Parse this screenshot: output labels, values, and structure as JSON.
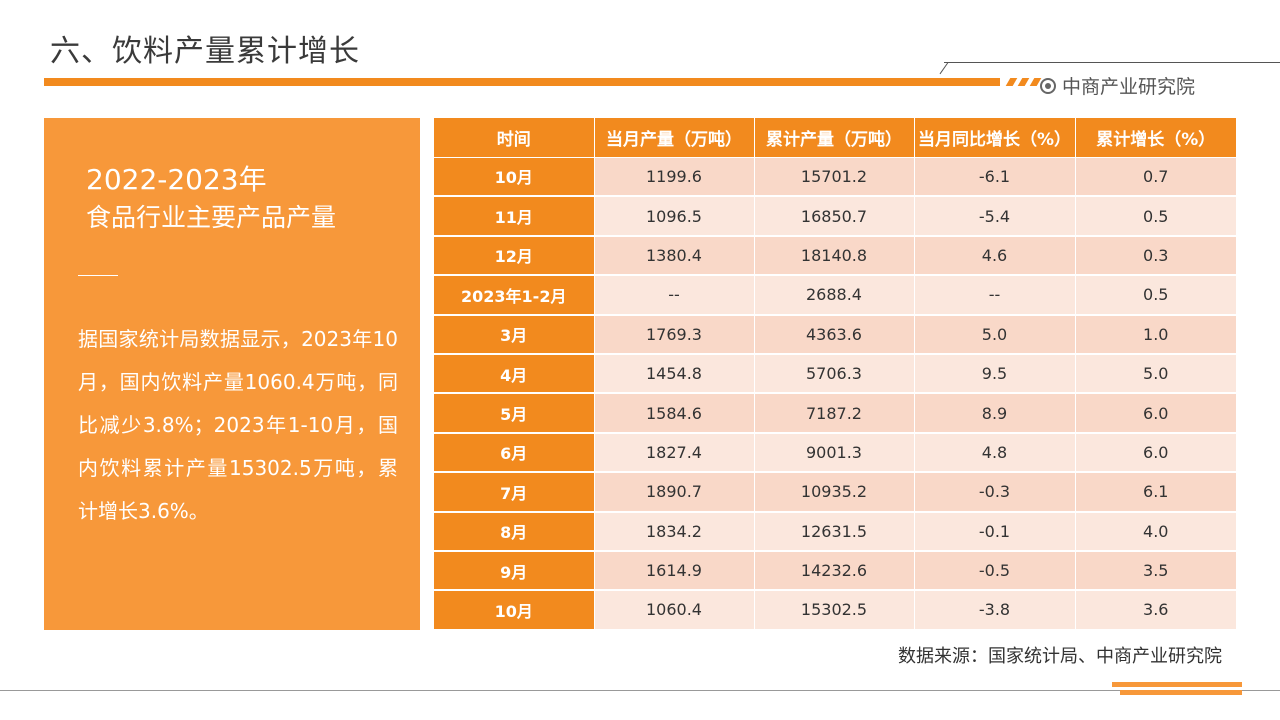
{
  "header": {
    "title": "六、饮料产量累计增长",
    "brand": "中商产业研究院",
    "brand_icon": "target-circle-icon",
    "accent_color": "#f28a1e"
  },
  "left_panel": {
    "year": "2022-2023年",
    "subtitle": "食品行业主要产品产量",
    "body": "据国家统计局数据显示，2023年10月，国内饮料产量1060.4万吨，同比减少3.8%；2023年1-10月，国内饮料累计产量15302.5万吨，累计增长3.6%。",
    "background_color": "#f7983a"
  },
  "table": {
    "headers": [
      "时间",
      "当月产量（万吨）",
      "累计产量（万吨）",
      "当月同比增长（%）",
      "累计增长（%）"
    ],
    "rows": [
      [
        "10月",
        "1199.6",
        "15701.2",
        "-6.1",
        "0.7"
      ],
      [
        "11月",
        "1096.5",
        "16850.7",
        "-5.4",
        "0.5"
      ],
      [
        "12月",
        "1380.4",
        "18140.8",
        "4.6",
        "0.3"
      ],
      [
        "2023年1-2月",
        "--",
        "2688.4",
        "--",
        "0.5"
      ],
      [
        "3月",
        "1769.3",
        "4363.6",
        "5.0",
        "1.0"
      ],
      [
        "4月",
        "1454.8",
        "5706.3",
        "9.5",
        "5.0"
      ],
      [
        "5月",
        "1584.6",
        "7187.2",
        "8.9",
        "6.0"
      ],
      [
        "6月",
        "1827.4",
        "9001.3",
        "4.8",
        "6.0"
      ],
      [
        "7月",
        "1890.7",
        "10935.2",
        "-0.3",
        "6.1"
      ],
      [
        "8月",
        "1834.2",
        "12631.5",
        "-0.1",
        "4.0"
      ],
      [
        "9月",
        "1614.9",
        "14232.6",
        "-0.5",
        "3.5"
      ],
      [
        "10月",
        "1060.4",
        "15302.5",
        "-3.8",
        "3.6"
      ]
    ]
  },
  "footer": {
    "source": "数据来源：国家统计局、中商产业研究院"
  }
}
